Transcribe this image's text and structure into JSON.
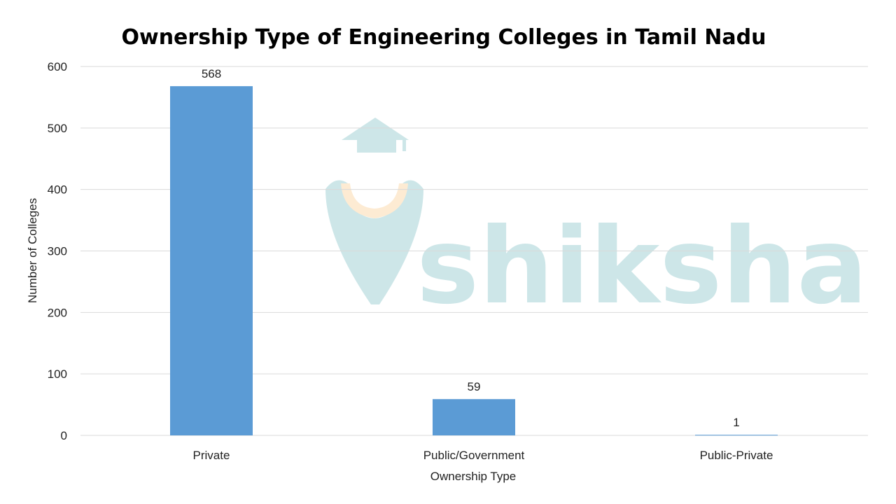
{
  "chart_data": {
    "type": "bar",
    "title": "Ownership Type of Engineering Colleges in Tamil Nadu",
    "xlabel": "Ownership Type",
    "ylabel": "Number of Colleges",
    "categories": [
      "Private",
      "Public/Government",
      "Public-Private"
    ],
    "values": [
      568,
      59,
      1
    ],
    "data_labels": [
      "568",
      "59",
      "1"
    ],
    "ylim": [
      0,
      600
    ],
    "yticks": [
      "0",
      "100",
      "200",
      "300",
      "400",
      "500",
      "600"
    ],
    "grid": true,
    "legend": "none",
    "bar_color": "#5b9bd5"
  },
  "watermark": {
    "text": "shiksha",
    "color": "#cde6e8",
    "accent": "#fdebd3"
  }
}
